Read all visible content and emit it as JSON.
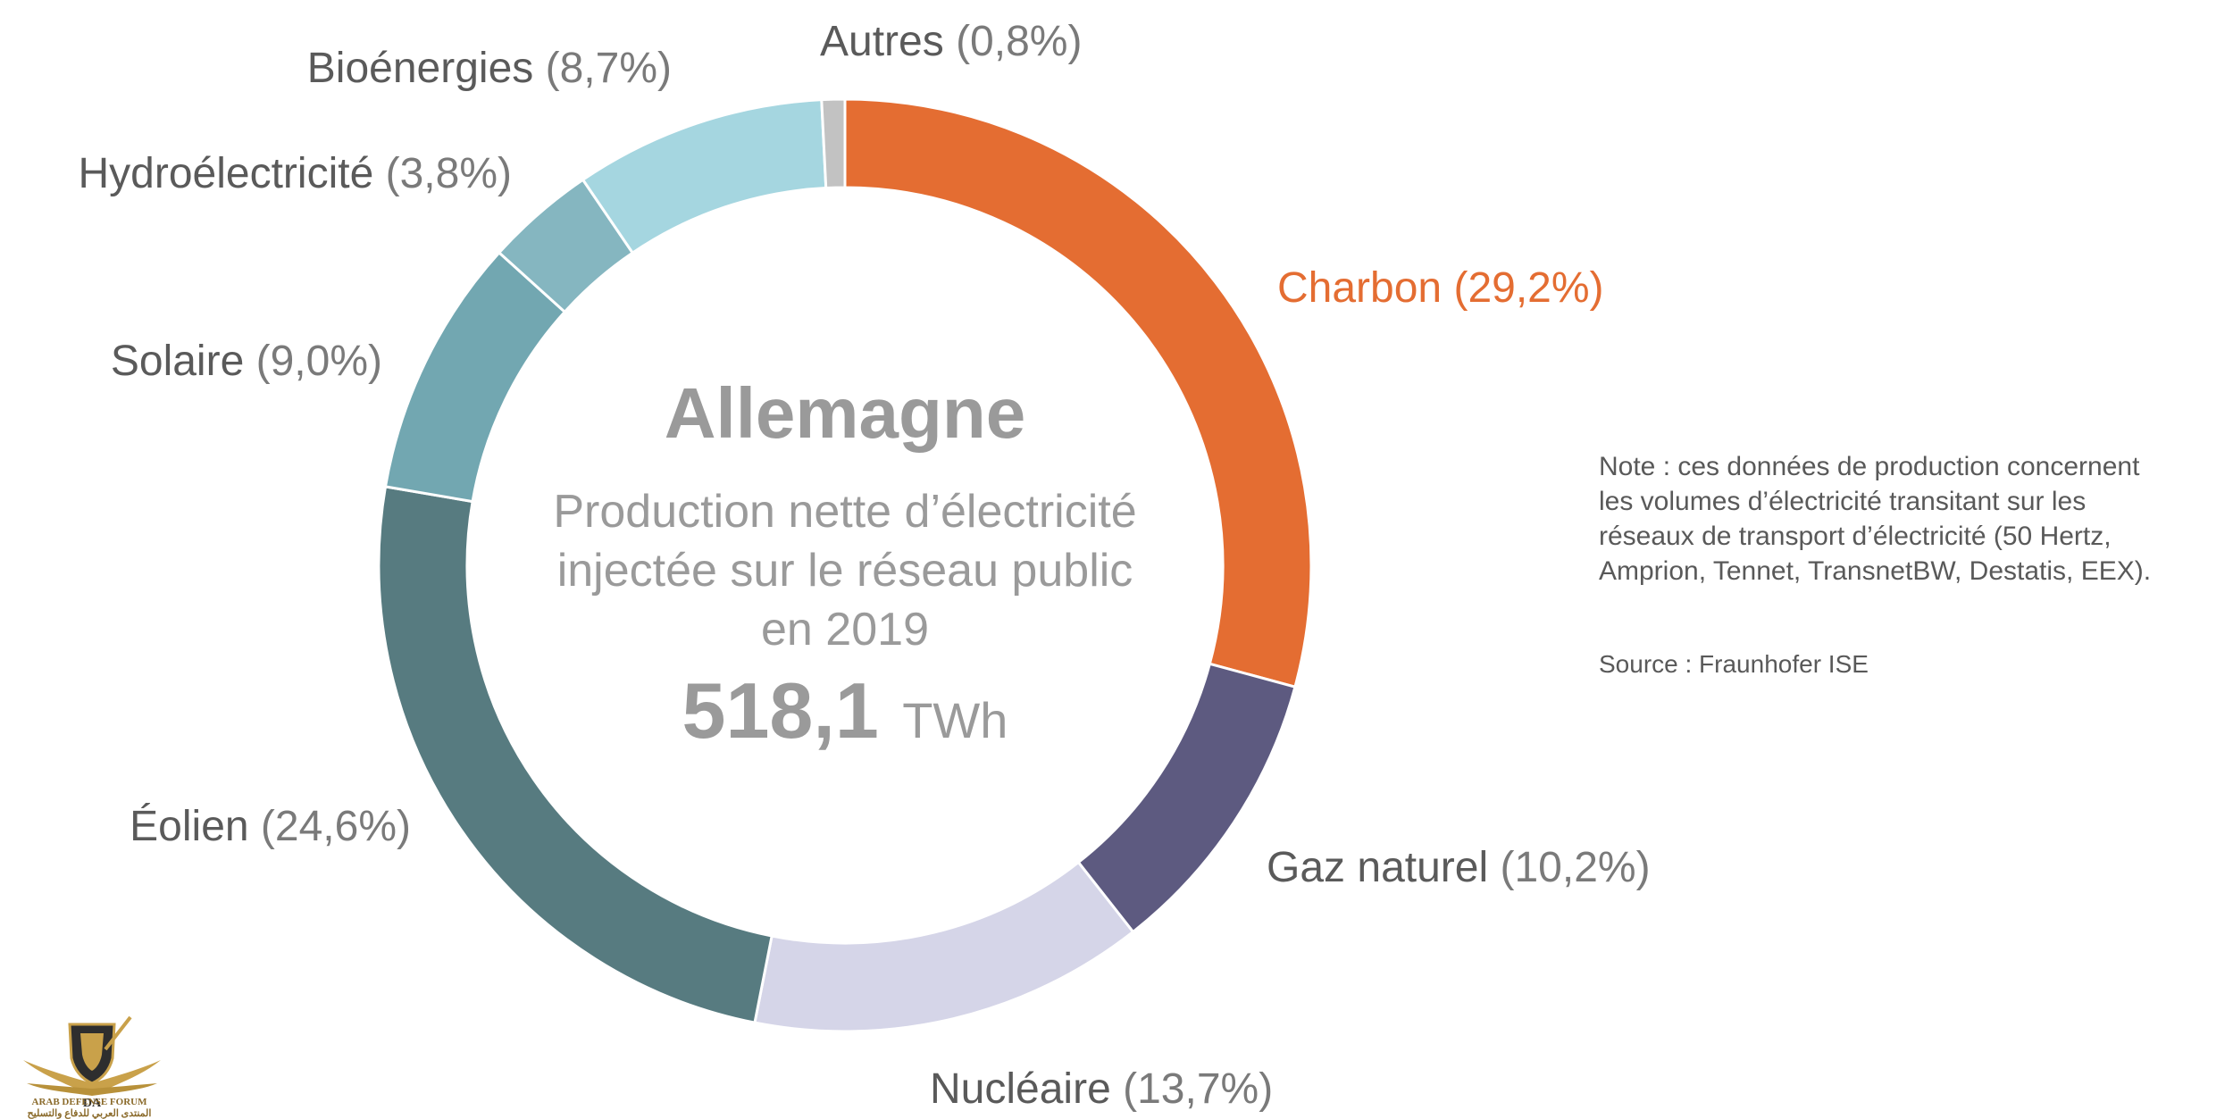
{
  "chart_data": {
    "type": "donut",
    "center": {
      "title": "Allemagne",
      "subtitle_lines": [
        "Production nette d’électricité",
        "injectée sur le réseau public",
        "en 2019"
      ],
      "total_value": "518,1",
      "total_unit": "TWh"
    },
    "slices": [
      {
        "name": "Charbon",
        "pct_label": "(29,2%)",
        "value": 29.2,
        "color": "#E46D32",
        "label_color": "#E46D32"
      },
      {
        "name": "Gaz naturel",
        "pct_label": "(10,2%)",
        "value": 10.2,
        "color": "#5D5A80",
        "label_color": "#5A5A5A"
      },
      {
        "name": "Nucléaire",
        "pct_label": "(13,7%)",
        "value": 13.7,
        "color": "#D5D5E8",
        "label_color": "#5A5A5A"
      },
      {
        "name": "Éolien",
        "pct_label": "(24,6%)",
        "value": 24.6,
        "color": "#577B80",
        "label_color": "#5A5A5A"
      },
      {
        "name": "Solaire",
        "pct_label": "(9,0%)",
        "value": 9.0,
        "color": "#72A7B1",
        "label_color": "#5A5A5A"
      },
      {
        "name": "Hydroélectricité",
        "pct_label": "(3,8%)",
        "value": 3.8,
        "color": "#85B6C0",
        "label_color": "#5A5A5A"
      },
      {
        "name": "Bioénergies",
        "pct_label": "(8,7%)",
        "value": 8.7,
        "color": "#A5D6E0",
        "label_color": "#5A5A5A"
      },
      {
        "name": "Autres",
        "pct_label": "(0,8%)",
        "value": 0.8,
        "color": "#C2C2C2",
        "label_color": "#5A5A5A"
      }
    ]
  },
  "note": {
    "lines": [
      "Note : ces données de production concernent",
      "les volumes d’électricité transitant sur les",
      "réseaux de transport d’électricité (50 Hertz,",
      "Amprion, Tennet, TransnetBW, Destatis, EEX)."
    ],
    "source": "Source : Fraunhofer ISE"
  },
  "watermark": {
    "text_lines": [
      "ARAB DEFENSE FORUM",
      "المنتدى العربي للدفاع والتسليح"
    ],
    "monogram": "DA"
  }
}
